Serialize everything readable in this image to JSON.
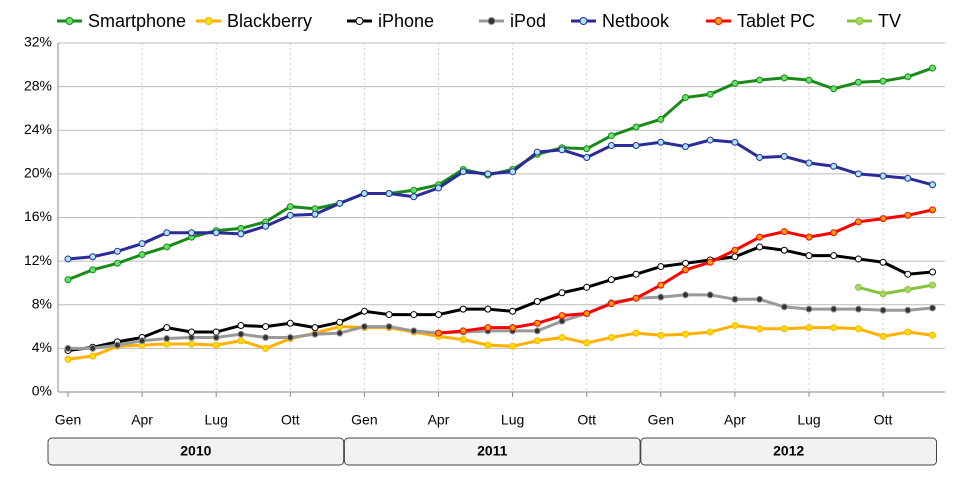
{
  "chart_data": {
    "type": "line",
    "categories": [
      "Gen",
      null,
      null,
      "Apr",
      null,
      null,
      "Lug",
      null,
      null,
      "Ott",
      null,
      null,
      "Gen",
      null,
      null,
      "Apr",
      null,
      null,
      "Lug",
      null,
      null,
      "Ott",
      null,
      null,
      "Gen",
      null,
      null,
      "Apr",
      null,
      null,
      "Lug",
      null,
      null,
      "Ott",
      null,
      null
    ],
    "years": [
      "2010",
      "2011",
      "2012"
    ],
    "ylim": [
      0,
      32
    ],
    "yticks": [
      {
        "value": 0,
        "label": "0%"
      },
      {
        "value": 4,
        "label": "4%"
      },
      {
        "value": 8,
        "label": "8%"
      },
      {
        "value": 12,
        "label": "12%"
      },
      {
        "value": 16,
        "label": "16%"
      },
      {
        "value": 20,
        "label": "20%"
      },
      {
        "value": 24,
        "label": "24%"
      },
      {
        "value": 28,
        "label": "28%"
      },
      {
        "value": 32,
        "label": "32%"
      }
    ],
    "grid": true,
    "legend": "top",
    "series": [
      {
        "name": "Smartphone",
        "color": "#1a8a1a",
        "marker_color": "#66e066",
        "values": [
          10.3,
          11.2,
          11.8,
          12.6,
          13.3,
          14.2,
          14.8,
          15.0,
          15.6,
          17.0,
          16.8,
          17.3,
          18.2,
          18.2,
          18.5,
          19.0,
          20.4,
          19.9,
          20.4,
          21.8,
          22.4,
          22.3,
          23.5,
          24.3,
          25.0,
          27.0,
          27.3,
          28.3,
          28.6,
          28.8,
          28.6,
          27.8,
          28.4,
          28.5,
          28.9,
          29.7
        ]
      },
      {
        "name": "Blackberry",
        "color": "#ffb000",
        "marker_color": "#ffe000",
        "values": [
          3.0,
          3.3,
          4.2,
          4.3,
          4.4,
          4.4,
          4.3,
          4.7,
          4.0,
          4.9,
          5.4,
          6.0,
          5.9,
          5.9,
          5.5,
          5.1,
          4.8,
          4.3,
          4.2,
          4.7,
          5.0,
          4.5,
          5.0,
          5.4,
          5.2,
          5.3,
          5.5,
          6.1,
          5.8,
          5.8,
          5.9,
          5.9,
          5.8,
          5.1,
          5.5,
          5.2
        ]
      },
      {
        "name": "iPhone",
        "color": "#000000",
        "marker_color": "#ffffff",
        "values": [
          3.8,
          4.1,
          4.6,
          5.0,
          5.9,
          5.5,
          5.5,
          6.1,
          6.0,
          6.3,
          5.9,
          6.4,
          7.4,
          7.1,
          7.1,
          7.1,
          7.6,
          7.6,
          7.4,
          8.3,
          9.1,
          9.6,
          10.3,
          10.8,
          11.5,
          11.8,
          12.1,
          12.4,
          13.3,
          13.0,
          12.5,
          12.5,
          12.2,
          11.9,
          10.8,
          11.0
        ]
      },
      {
        "name": "iPod",
        "color": "#999999",
        "marker_color": "#333333",
        "values": [
          4.0,
          4.0,
          4.3,
          4.7,
          4.9,
          5.0,
          5.0,
          5.3,
          5.0,
          5.0,
          5.3,
          5.4,
          6.0,
          6.0,
          5.6,
          5.4,
          5.5,
          5.6,
          5.6,
          5.6,
          6.5,
          7.2,
          8.2,
          8.6,
          8.7,
          8.9,
          8.9,
          8.5,
          8.5,
          7.8,
          7.6,
          7.6,
          7.6,
          7.5,
          7.5,
          7.7
        ]
      },
      {
        "name": "Netbook",
        "color": "#2b2b9a",
        "marker_color": "#a8e8f8",
        "values": [
          12.2,
          12.4,
          12.9,
          13.6,
          14.6,
          14.6,
          14.6,
          14.5,
          15.2,
          16.2,
          16.3,
          17.3,
          18.2,
          18.2,
          17.9,
          18.7,
          20.2,
          20.0,
          20.2,
          22.0,
          22.2,
          21.5,
          22.6,
          22.6,
          22.9,
          22.5,
          23.1,
          22.9,
          21.5,
          21.6,
          21.0,
          20.7,
          20.0,
          19.8,
          19.6,
          19.0
        ]
      },
      {
        "name": "Tablet PC",
        "color": "#ff0000",
        "marker_color": "#ffa000",
        "values": [
          null,
          null,
          null,
          null,
          null,
          null,
          null,
          null,
          null,
          null,
          null,
          null,
          null,
          null,
          null,
          5.4,
          5.6,
          5.9,
          5.9,
          6.3,
          7.0,
          7.2,
          8.1,
          8.6,
          9.8,
          11.2,
          11.9,
          13.0,
          14.2,
          14.7,
          14.2,
          14.6,
          15.6,
          15.9,
          16.2,
          16.7
        ]
      },
      {
        "name": "TV",
        "color": "#88c040",
        "marker_color": "#a8d860",
        "values": [
          null,
          null,
          null,
          null,
          null,
          null,
          null,
          null,
          null,
          null,
          null,
          null,
          null,
          null,
          null,
          null,
          null,
          null,
          null,
          null,
          null,
          null,
          null,
          null,
          null,
          null,
          null,
          null,
          null,
          null,
          null,
          null,
          9.6,
          9.0,
          9.4,
          9.8
        ]
      }
    ]
  }
}
